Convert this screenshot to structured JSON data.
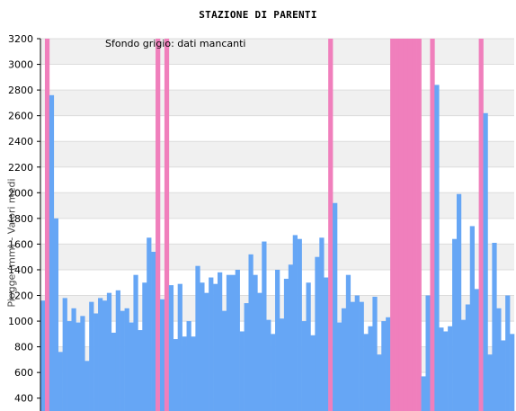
{
  "chart_data": {
    "type": "bar",
    "title": "STAZIONE DI PARENTI",
    "ylabel": "Piogge (mm) - Valori medi",
    "note": "Sfondo grigio: dati mancanti",
    "ylim": [
      300,
      3200
    ],
    "yticks": [
      400,
      600,
      800,
      1000,
      1200,
      1400,
      1600,
      1800,
      2000,
      2200,
      2400,
      2600,
      2800,
      3000,
      3200
    ],
    "grid": true,
    "colors": {
      "bar": "#66a6f5",
      "missing": "#f07fbc",
      "band_light": "#ffffff",
      "band_dark": "#f0f0f0"
    },
    "values": [
      1160,
      null,
      2760,
      1800,
      760,
      1180,
      1000,
      1100,
      990,
      1040,
      690,
      1150,
      1060,
      1180,
      1160,
      1220,
      910,
      1240,
      1080,
      1100,
      990,
      1360,
      930,
      1300,
      1650,
      1540,
      null,
      1170,
      null,
      1280,
      860,
      1290,
      880,
      1000,
      880,
      1430,
      1300,
      1220,
      1340,
      1290,
      1380,
      1080,
      1360,
      1360,
      1400,
      920,
      1140,
      1520,
      1360,
      1220,
      1620,
      1010,
      900,
      1400,
      1020,
      1330,
      1440,
      1670,
      1640,
      1000,
      1300,
      890,
      1500,
      1650,
      1340,
      null,
      1920,
      990,
      1100,
      1360,
      1150,
      1200,
      1150,
      900,
      960,
      1190,
      740,
      1000,
      1030,
      null,
      null,
      null,
      null,
      null,
      null,
      null,
      570,
      1200,
      null,
      2840,
      950,
      920,
      960,
      1640,
      1990,
      1010,
      1130,
      1740,
      1250,
      null,
      2620,
      740,
      1610,
      1100,
      850,
      1200,
      900
    ]
  }
}
